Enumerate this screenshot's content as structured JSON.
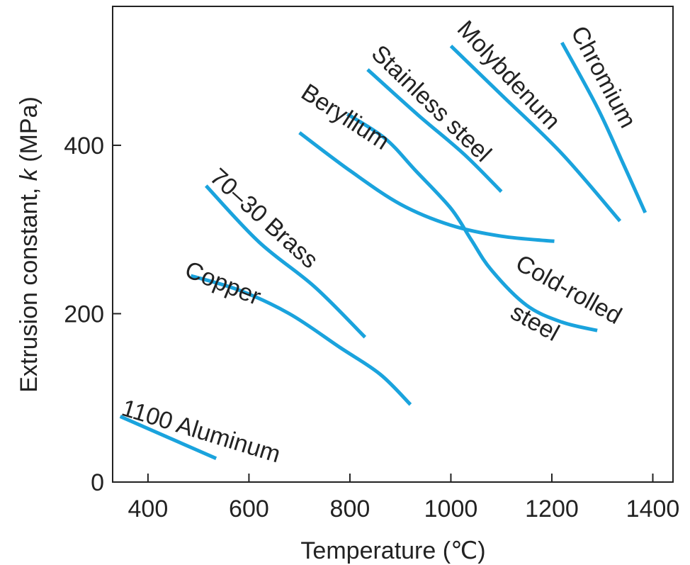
{
  "chart_data": {
    "type": "line",
    "xlabel": "Temperature (℃)",
    "ylabel_parts": [
      "Extrusion constant, ",
      "k",
      " (MPa)"
    ],
    "x_ticks": [
      400,
      600,
      800,
      1000,
      1200,
      1400
    ],
    "y_ticks": [
      0,
      200,
      400
    ],
    "xlim": [
      330,
      1440
    ],
    "ylim": [
      0,
      565
    ],
    "line_color": "#1aa3dd",
    "series": [
      {
        "name": "1100 Aluminum",
        "points": [
          [
            345,
            78
          ],
          [
            535,
            28
          ]
        ]
      },
      {
        "name": "Copper",
        "points": [
          [
            485,
            245
          ],
          [
            580,
            228
          ],
          [
            680,
            200
          ],
          [
            780,
            160
          ],
          [
            860,
            128
          ],
          [
            920,
            92
          ]
        ]
      },
      {
        "name": "70–30 Brass",
        "points": [
          [
            515,
            352
          ],
          [
            620,
            285
          ],
          [
            730,
            232
          ],
          [
            830,
            172
          ]
        ]
      },
      {
        "name": "Beryllium",
        "points": [
          [
            700,
            415
          ],
          [
            800,
            370
          ],
          [
            900,
            330
          ],
          [
            1000,
            305
          ],
          [
            1100,
            292
          ],
          [
            1205,
            286
          ]
        ]
      },
      {
        "name": "Cold-rolled steel",
        "points": [
          [
            795,
            437
          ],
          [
            870,
            408
          ],
          [
            930,
            370
          ],
          [
            1000,
            325
          ],
          [
            1040,
            288
          ],
          [
            1080,
            252
          ],
          [
            1150,
            210
          ],
          [
            1220,
            190
          ],
          [
            1290,
            180
          ]
        ]
      },
      {
        "name": "Stainless steel",
        "points": [
          [
            835,
            490
          ],
          [
            935,
            436
          ],
          [
            1025,
            390
          ],
          [
            1100,
            345
          ]
        ]
      },
      {
        "name": "Molybdenum",
        "points": [
          [
            1000,
            518
          ],
          [
            1100,
            460
          ],
          [
            1220,
            390
          ],
          [
            1335,
            310
          ]
        ]
      },
      {
        "name": "Chromium",
        "points": [
          [
            1220,
            522
          ],
          [
            1290,
            445
          ],
          [
            1340,
            380
          ],
          [
            1385,
            320
          ]
        ]
      }
    ],
    "labels": [
      {
        "text": "1100 Aluminum",
        "at": [
          345,
          80
        ],
        "angle": 17
      },
      {
        "text": "Copper",
        "at": [
          470,
          245
        ],
        "angle": 22
      },
      {
        "text": "70–30 Brass",
        "at": [
          520,
          360
        ],
        "angle": 42
      },
      {
        "text": "Beryllium",
        "at": [
          700,
          458
        ],
        "angle": 33
      },
      {
        "text": "Stainless steel",
        "at": [
          840,
          507
        ],
        "angle": 44
      },
      {
        "text": "Molybdenum",
        "at": [
          1010,
          537
        ],
        "angle": 47
      },
      {
        "text": "Chromium",
        "at": [
          1237,
          535
        ],
        "angle": 62
      },
      {
        "text": "Cold-rolled",
        "at": [
          1125,
          254
        ],
        "angle": 29
      },
      {
        "text": "steel",
        "at": [
          1115,
          196
        ],
        "angle": 29
      }
    ]
  }
}
